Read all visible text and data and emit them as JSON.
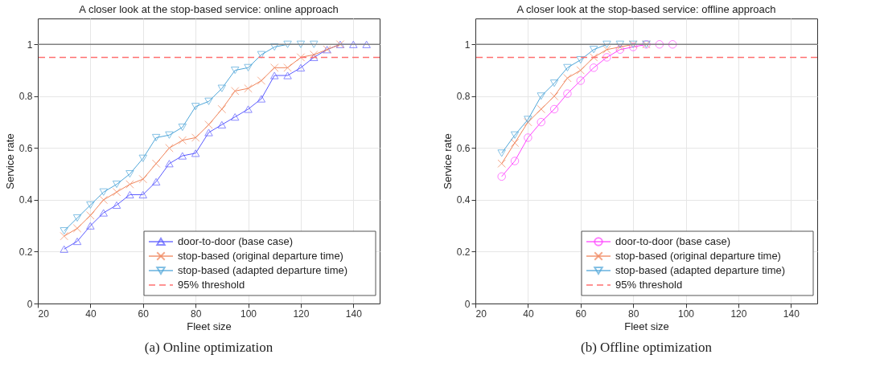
{
  "chart_data": [
    {
      "type": "line",
      "title": "A closer look at the stop-based service: online approach",
      "xlabel": "Fleet size",
      "ylabel": "Service rate",
      "xlim": [
        20,
        150
      ],
      "xticks": [
        20,
        40,
        60,
        80,
        100,
        120,
        140
      ],
      "ylim": [
        0,
        1.1
      ],
      "yticks": [
        0,
        0.2,
        0.4,
        0.6,
        0.8,
        1
      ],
      "grid": true,
      "legend": "bottom right",
      "line_style": "solid",
      "series": [
        {
          "name": "door-to-door (base case)",
          "color": "#5a5aff",
          "marker": "triangle",
          "x": [
            30,
            35,
            40,
            45,
            50,
            55,
            60,
            65,
            70,
            75,
            80,
            85,
            90,
            95,
            100,
            105,
            110,
            115,
            120,
            125,
            130,
            135,
            140,
            145
          ],
          "values": [
            0.21,
            0.24,
            0.3,
            0.35,
            0.38,
            0.42,
            0.42,
            0.47,
            0.54,
            0.57,
            0.58,
            0.66,
            0.69,
            0.72,
            0.75,
            0.79,
            0.88,
            0.88,
            0.91,
            0.95,
            0.98,
            1,
            1,
            1
          ]
        },
        {
          "name": "stop-based (original departure time)",
          "color": "#f0845a",
          "marker": "cross",
          "x": [
            30,
            35,
            40,
            45,
            50,
            55,
            60,
            65,
            70,
            75,
            80,
            85,
            90,
            95,
            100,
            105,
            110,
            115,
            120,
            125,
            130,
            135
          ],
          "values": [
            0.26,
            0.29,
            0.34,
            0.4,
            0.43,
            0.46,
            0.48,
            0.54,
            0.6,
            0.63,
            0.64,
            0.69,
            0.75,
            0.82,
            0.83,
            0.86,
            0.91,
            0.91,
            0.95,
            0.96,
            0.98,
            1
          ]
        },
        {
          "name": "stop-based (adapted departure time)",
          "color": "#4fa6d9",
          "marker": "triangle-down",
          "x": [
            30,
            35,
            40,
            45,
            50,
            55,
            60,
            65,
            70,
            75,
            80,
            85,
            90,
            95,
            100,
            105,
            110,
            115,
            120,
            125
          ],
          "values": [
            0.28,
            0.33,
            0.38,
            0.43,
            0.46,
            0.5,
            0.56,
            0.64,
            0.65,
            0.68,
            0.76,
            0.78,
            0.83,
            0.9,
            0.91,
            0.96,
            0.99,
            1,
            1,
            1
          ]
        }
      ],
      "ref_lines": [
        {
          "axis": "y",
          "value": 1,
          "color": "#808080",
          "line_style": "solid"
        },
        {
          "axis": "y",
          "value": 0.95,
          "label": "95% threshold",
          "color": "#ff7070",
          "line_style": "dashed"
        }
      ],
      "annotations": [
        "(a) Online optimization"
      ]
    },
    {
      "type": "line",
      "title": "A closer look at the stop-based service: offline approach",
      "xlabel": "Fleet size",
      "ylabel": "Service rate",
      "xlim": [
        20,
        150
      ],
      "xticks": [
        20,
        40,
        60,
        80,
        100,
        120,
        140
      ],
      "ylim": [
        0,
        1.1
      ],
      "yticks": [
        0,
        0.2,
        0.4,
        0.6,
        0.8,
        1
      ],
      "grid": true,
      "legend": "bottom right",
      "line_style": "solid",
      "series": [
        {
          "name": "door-to-door (base case)",
          "color": "#ff44ff",
          "marker": "circle",
          "x": [
            30,
            35,
            40,
            45,
            50,
            55,
            60,
            65,
            70,
            75,
            80,
            85,
            90,
            95
          ],
          "values": [
            0.49,
            0.55,
            0.64,
            0.7,
            0.75,
            0.81,
            0.86,
            0.91,
            0.95,
            0.98,
            0.99,
            1,
            1,
            1
          ]
        },
        {
          "name": "stop-based (original departure time)",
          "color": "#f0845a",
          "marker": "cross",
          "x": [
            30,
            35,
            40,
            45,
            50,
            55,
            60,
            65,
            70,
            75,
            80,
            85
          ],
          "values": [
            0.54,
            0.62,
            0.7,
            0.75,
            0.8,
            0.87,
            0.9,
            0.95,
            0.98,
            0.99,
            1,
            1
          ]
        },
        {
          "name": "stop-based (adapted departure time)",
          "color": "#4fa6d9",
          "marker": "triangle-down",
          "x": [
            30,
            35,
            40,
            45,
            50,
            55,
            60,
            65,
            70,
            75,
            80,
            85
          ],
          "values": [
            0.58,
            0.65,
            0.71,
            0.8,
            0.85,
            0.91,
            0.94,
            0.98,
            1,
            1,
            1,
            1
          ]
        }
      ],
      "ref_lines": [
        {
          "axis": "y",
          "value": 1,
          "color": "#808080",
          "line_style": "solid"
        },
        {
          "axis": "y",
          "value": 0.95,
          "label": "95% threshold",
          "color": "#ff7070",
          "line_style": "dashed"
        }
      ],
      "annotations": [
        "(b) Offline optimization"
      ]
    }
  ]
}
